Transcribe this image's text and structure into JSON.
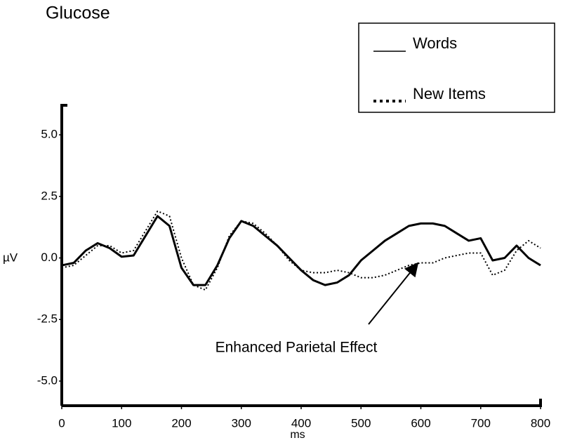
{
  "chart_data": {
    "type": "line",
    "title": "Glucose",
    "x_label": "ms",
    "y_label": "µV",
    "annotation": "Enhanced Parietal Effect",
    "x": [
      0,
      20,
      40,
      60,
      80,
      100,
      120,
      140,
      160,
      180,
      200,
      220,
      240,
      260,
      280,
      300,
      320,
      340,
      360,
      380,
      400,
      420,
      440,
      460,
      480,
      500,
      520,
      540,
      560,
      580,
      600,
      620,
      640,
      660,
      680,
      700,
      720,
      740,
      760,
      780,
      800
    ],
    "series": [
      {
        "name": "Words",
        "color": "#000000",
        "style": "solid",
        "values": [
          -0.3,
          -0.2,
          0.3,
          0.6,
          0.4,
          0.05,
          0.1,
          0.9,
          1.7,
          1.3,
          -0.4,
          -1.1,
          -1.1,
          -0.3,
          0.8,
          1.5,
          1.3,
          0.9,
          0.5,
          0,
          -0.5,
          -0.9,
          -1.1,
          -1.0,
          -0.7,
          -0.1,
          0.3,
          0.7,
          1.0,
          1.3,
          1.4,
          1.4,
          1.3,
          1.0,
          0.7,
          0.8,
          -0.1,
          0.0,
          0.5,
          0.0,
          -0.3
        ]
      },
      {
        "name": "New Items",
        "color": "#000000",
        "style": "dotted",
        "values": [
          -0.4,
          -0.3,
          0.1,
          0.5,
          0.5,
          0.2,
          0.3,
          1.1,
          1.9,
          1.7,
          0.0,
          -1.1,
          -1.3,
          -0.4,
          0.9,
          1.5,
          1.4,
          1.0,
          0.5,
          -0.1,
          -0.5,
          -0.6,
          -0.6,
          -0.5,
          -0.6,
          -0.8,
          -0.8,
          -0.7,
          -0.5,
          -0.3,
          -0.2,
          -0.2,
          0.0,
          0.1,
          0.2,
          0.2,
          -0.7,
          -0.5,
          0.3,
          0.7,
          0.4
        ]
      }
    ],
    "xlim": [
      0,
      800
    ],
    "xticks": [
      0,
      100,
      200,
      300,
      400,
      500,
      600,
      700,
      800
    ],
    "ylim": [
      -6,
      6.2
    ],
    "yticks": [
      {
        "value": 5,
        "label": "5.0"
      },
      {
        "value": 2.5,
        "label": "2.5"
      },
      {
        "value": 0,
        "label": "0.0"
      },
      {
        "value": -2.5,
        "label": "-2.5"
      },
      {
        "value": -5,
        "label": "-5.0"
      }
    ],
    "legend": "upper right"
  }
}
